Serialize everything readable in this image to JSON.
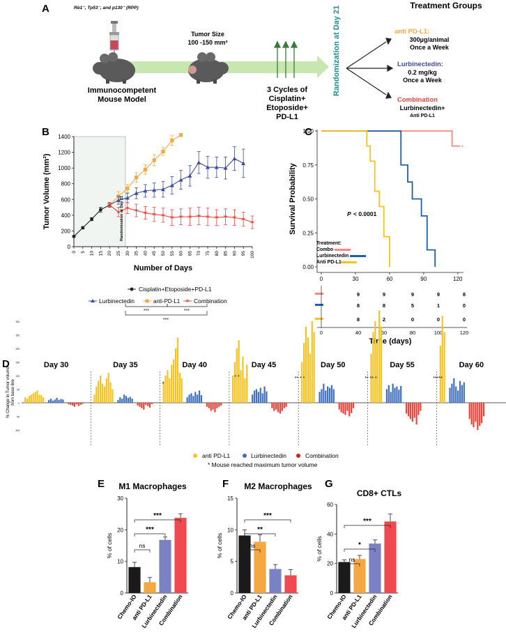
{
  "colors": {
    "orange": "#f5a742",
    "navy": "#3c4ba0",
    "red": "#e8443a",
    "black": "#222222",
    "yellow": "#f7c21e",
    "blue": "#3f6fc0",
    "pink": "#f08a80",
    "teal": "#1a8f8f",
    "green": "#3a7a3a",
    "arrow": "#c8e6b0",
    "chemo": "#1a1a1a",
    "lurbi_bar": "#7a82c4",
    "combo_bar": "#ee4a4f"
  },
  "panelA": {
    "label": "A",
    "genotype": "Rb1⁻, Tp53⁻, and p130⁻ (RPP)",
    "mouse_label1": "Immunocompetent",
    "mouse_label2": "Mouse Model",
    "tumor_size1": "Tumor Size",
    "tumor_size2": "100 -150 mm³",
    "cycles1": "3 Cycles of",
    "cycles2": "Cisplatin+",
    "cycles3": "Etoposide+",
    "cycles4": "PD-L1",
    "randomization": "Randomization at Day 21",
    "groups_title": "Treatment Groups",
    "g1_name": "anti PD-L1:",
    "g1_l2": "300µg/animal",
    "g1_l3": "Once a Week",
    "g2_name": "Lurbinectedin:",
    "g2_l2": "0.2 mg/kg",
    "g2_l3": "Once a Week",
    "g3_name": "Combination",
    "g3_l2": "Lurbinectedin+",
    "g3_l3": "Anti PD-L1"
  },
  "panelB": {
    "label": "B",
    "randomization_note": "Randomization at Day 21",
    "legend_chemo": "Cisplatin+Etoposide+PD-L1",
    "legend_lurbi": "Lurbinectedin",
    "legend_anti": "anti-PD-L1",
    "legend_combo": "Combination",
    "sig1": "***",
    "sig2": "***",
    "sig3": "***"
  },
  "panelC": {
    "label": "C",
    "pvalue_label": "P",
    "pvalue_value": "< 0.0001",
    "treatment_title": "Treatment:",
    "t_combo": "Combo",
    "t_lurbi": "Lurbinectedin",
    "t_anti": "Anti PD-L1",
    "risk_rows": [
      [
        "9",
        "9",
        "9",
        "9",
        "8"
      ],
      [
        "8",
        "8",
        "5",
        "1",
        "0"
      ],
      [
        "8",
        "2",
        "0",
        "0",
        "0"
      ]
    ],
    "risk_xticks": [
      "0",
      "40",
      "60",
      "80",
      "100",
      "120"
    ]
  },
  "panelD": {
    "label": "D",
    "ylabel1": "% Change in Tumor volume",
    "ylabel2": "from base line",
    "days": [
      "Day 30",
      "Day 35",
      "Day 40",
      "Day 45",
      "Day 50",
      "Day 55",
      "Day 60"
    ],
    "yticks": [
      "300",
      "250",
      "200",
      "150",
      "100",
      "50",
      "0",
      "-50",
      "-100"
    ],
    "legend_anti": "anti PD-L1",
    "legend_lurbi": "Lurbinectedin",
    "legend_combo": "Combination",
    "star_note": "*  Mouse reached maximum tumor volume",
    "stars": [
      "*",
      "* *",
      "** * *",
      "** ** *",
      "*****"
    ]
  },
  "panelE": {
    "label": "E",
    "title": "M1 Macrophages",
    "sig_ns": "ns",
    "sig_a": "***",
    "sig_b": "***"
  },
  "panelF": {
    "label": "F",
    "title": "M2 Macrophages",
    "sig_ns": "ns",
    "sig_a": "**",
    "sig_b": "***"
  },
  "panelG": {
    "label": "G",
    "title": "CD8+  CTLs",
    "sig_ns": "ns",
    "sig_a": "*",
    "sig_b": "***"
  },
  "chart_data": [
    {
      "id": "B",
      "type": "line",
      "title": "",
      "xlabel": "Number of Days",
      "ylabel": "Tumor Volume (mm³)",
      "xticks": [
        "0",
        "5",
        "10",
        "15",
        "20",
        "25",
        "30",
        "35",
        "40",
        "45",
        "50",
        "55",
        "60",
        "65",
        "70",
        "75",
        "80",
        "85",
        "90",
        "95",
        "100"
      ],
      "ylim": [
        0,
        1400
      ],
      "yticks": [
        "0",
        "200",
        "400",
        "600",
        "800",
        "1000",
        "1200",
        "1400"
      ],
      "series": [
        {
          "name": "Cisplatin+Etoposide+PD-L1",
          "x": [
            0,
            5,
            10,
            15,
            20
          ],
          "values": [
            130,
            240,
            350,
            470,
            530
          ],
          "err": [
            10,
            15,
            20,
            30,
            30
          ]
        },
        {
          "name": "anti-PD-L1",
          "x": [
            20,
            25,
            30,
            35,
            40,
            45,
            50,
            55,
            60
          ],
          "values": [
            530,
            640,
            740,
            880,
            980,
            1100,
            1210,
            1350,
            1420
          ],
          "err": [
            30,
            60,
            50,
            60,
            60,
            70,
            50,
            60,
            20
          ]
        },
        {
          "name": "Lurbinectedin",
          "x": [
            20,
            25,
            30,
            35,
            40,
            45,
            50,
            55,
            60,
            65,
            70,
            75,
            80,
            85,
            90,
            95
          ],
          "values": [
            530,
            590,
            620,
            680,
            710,
            720,
            730,
            780,
            850,
            900,
            1070,
            1010,
            1010,
            1000,
            1120,
            1060
          ],
          "err": [
            30,
            50,
            60,
            70,
            80,
            90,
            100,
            110,
            120,
            130,
            140,
            140,
            130,
            140,
            150,
            180
          ]
        },
        {
          "name": "Combination",
          "x": [
            20,
            25,
            30,
            35,
            40,
            45,
            50,
            55,
            60,
            65,
            70,
            75,
            80,
            85,
            90,
            95,
            100
          ],
          "values": [
            530,
            440,
            490,
            460,
            430,
            410,
            400,
            370,
            380,
            380,
            390,
            380,
            370,
            380,
            370,
            350,
            310
          ],
          "err": [
            30,
            60,
            70,
            80,
            80,
            90,
            90,
            100,
            100,
            110,
            110,
            110,
            100,
            100,
            100,
            90,
            80
          ]
        }
      ]
    },
    {
      "id": "C",
      "type": "line",
      "xlabel": "Time (days)",
      "ylabel": "Survival Probability",
      "xticks": [
        "0",
        "30",
        "60",
        "90",
        "120"
      ],
      "ylim": [
        0,
        1
      ],
      "yticks": [
        "0.00",
        "0.25",
        "0.50",
        "0.75",
        "1.00"
      ],
      "series": [
        {
          "name": "Combo",
          "steps": [
            [
              0,
              1.0
            ],
            [
              115,
              1.0
            ],
            [
              115,
              0.889
            ],
            [
              122,
              0.889
            ]
          ]
        },
        {
          "name": "Lurbinectedin",
          "steps": [
            [
              0,
              1.0
            ],
            [
              70,
              1.0
            ],
            [
              70,
              0.75
            ],
            [
              76,
              0.75
            ],
            [
              76,
              0.625
            ],
            [
              80,
              0.625
            ],
            [
              80,
              0.5
            ],
            [
              88,
              0.5
            ],
            [
              88,
              0.375
            ],
            [
              93,
              0.375
            ],
            [
              93,
              0.125
            ],
            [
              100,
              0.125
            ],
            [
              100,
              0
            ]
          ]
        },
        {
          "name": "Anti PD-L1",
          "steps": [
            [
              0,
              1.0
            ],
            [
              40,
              1.0
            ],
            [
              40,
              0.889
            ],
            [
              43,
              0.889
            ],
            [
              43,
              0.778
            ],
            [
              47,
              0.778
            ],
            [
              47,
              0.556
            ],
            [
              51,
              0.556
            ],
            [
              51,
              0.444
            ],
            [
              55,
              0.444
            ],
            [
              55,
              0.222
            ],
            [
              60,
              0.222
            ],
            [
              60,
              0
            ]
          ]
        }
      ]
    },
    {
      "id": "D",
      "type": "bar",
      "ylabel": "% Change in Tumor volume from base line",
      "ylim": [
        -100,
        300
      ],
      "groups": [
        {
          "day": "Day 30",
          "anti": [
            20,
            15,
            25,
            30,
            35,
            40,
            45,
            30,
            28,
            20
          ],
          "lurbi": [
            10,
            15,
            8,
            12,
            18,
            10,
            14,
            12
          ],
          "combo": [
            -5,
            -8,
            -10,
            -15,
            -6,
            -12,
            -8,
            -4
          ]
        },
        {
          "day": "Day 35",
          "anti": [
            30,
            60,
            80,
            100,
            70,
            60,
            90,
            110,
            75,
            50
          ],
          "lurbi": [
            10,
            20,
            15,
            30,
            25,
            18,
            22,
            15
          ],
          "combo": [
            -10,
            -15,
            -20,
            -25,
            -8,
            -12,
            -18,
            -5
          ]
        },
        {
          "day": "Day 40",
          "anti": [
            80,
            100,
            120,
            90,
            140,
            160,
            200,
            240,
            110,
            90
          ],
          "lurbi": [
            20,
            30,
            35,
            25,
            40,
            30,
            45,
            28
          ],
          "combo": [
            -15,
            -20,
            -30,
            -25,
            -35,
            -20,
            -15,
            -10
          ]
        },
        {
          "day": "Day 45",
          "anti": [
            100,
            150,
            200,
            230,
            120,
            170,
            90,
            140
          ],
          "lurbi": [
            30,
            45,
            50,
            40,
            55,
            35,
            60,
            42
          ],
          "combo": [
            -20,
            -30,
            -25,
            -35,
            -40,
            -30,
            -20,
            -15
          ]
        },
        {
          "day": "Day 50",
          "anti": [
            150,
            220,
            280,
            240,
            180,
            300,
            260
          ],
          "lurbi": [
            40,
            50,
            70,
            45,
            60,
            55,
            65,
            50
          ],
          "combo": [
            -25,
            -35,
            -40,
            -45,
            -30,
            -50,
            -38,
            -20
          ]
        },
        {
          "day": "Day 55",
          "anti": [
            180,
            260,
            300,
            220,
            340,
            280
          ],
          "lurbi": [
            50,
            65,
            40,
            70,
            55,
            60,
            48,
            62
          ],
          "combo": [
            -40,
            -50,
            -60,
            -70,
            -55,
            -80,
            -45,
            -30
          ]
        },
        {
          "day": "Day 60",
          "anti": [
            210,
            320,
            260
          ],
          "lurbi": [
            55,
            70,
            90,
            60,
            45,
            80,
            65,
            75
          ],
          "combo": [
            -60,
            -80,
            -90,
            -70,
            -100,
            -85,
            -75,
            -50
          ]
        }
      ]
    },
    {
      "id": "E",
      "type": "bar",
      "title": "M1 Macrophages",
      "ylabel": "% of cells",
      "ylim": [
        0,
        30
      ],
      "yticks": [
        "0",
        "10",
        "20",
        "30"
      ],
      "categories": [
        "Chemo-IO",
        "anti PD-L1",
        "Lurbinectedin",
        "Combination"
      ],
      "values": [
        8.2,
        3.4,
        16.8,
        23.8
      ],
      "err": [
        1.5,
        1.5,
        0.9,
        1.3
      ]
    },
    {
      "id": "F",
      "type": "bar",
      "title": "M2 Macrophages",
      "ylabel": "% of cells",
      "ylim": [
        0,
        15
      ],
      "yticks": [
        "0",
        "5",
        "10",
        "15"
      ],
      "categories": [
        "Chemo-IO",
        "anti PD-L1",
        "Lurbinectedin",
        "Combination"
      ],
      "values": [
        9.1,
        8.1,
        3.8,
        2.8
      ],
      "err": [
        0.9,
        1.1,
        0.7,
        0.9
      ]
    },
    {
      "id": "G",
      "type": "bar",
      "title": "CD8+  CTLs",
      "ylabel": "% of cells",
      "ylim": [
        0,
        60
      ],
      "yticks": [
        "0",
        "20",
        "40",
        "60"
      ],
      "categories": [
        "Chemo-IO",
        "anti PD-L1",
        "Lurbinectedin",
        "Combination"
      ],
      "values": [
        21,
        23,
        33.5,
        48.5
      ],
      "err": [
        1.5,
        2.5,
        2.5,
        5
      ]
    }
  ]
}
